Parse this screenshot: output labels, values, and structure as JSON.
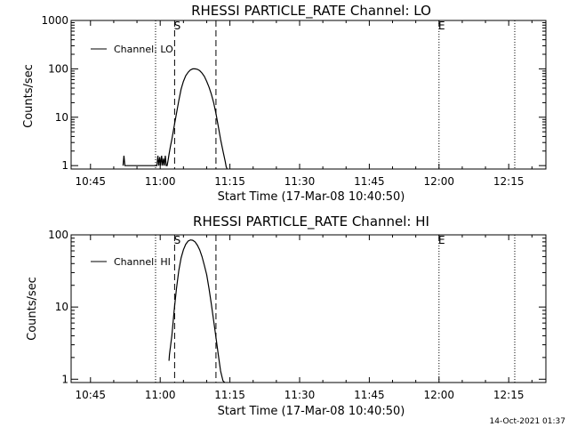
{
  "footer_timestamp": "14-Oct-2021 01:37",
  "chart_data": [
    {
      "type": "line",
      "title": "RHESSI PARTICLE_RATE Channel: LO",
      "xlabel": "Start Time (17-Mar-08 10:40:50)",
      "ylabel": "Counts/sec",
      "yscale": "log",
      "xlim_min": [
        40.83,
        143.0
      ],
      "ylim": [
        0.85,
        1000
      ],
      "xticks": [
        {
          "m": 45,
          "label": "10:45"
        },
        {
          "m": 60,
          "label": "11:00"
        },
        {
          "m": 75,
          "label": "11:15"
        },
        {
          "m": 90,
          "label": "11:30"
        },
        {
          "m": 105,
          "label": "11:45"
        },
        {
          "m": 120,
          "label": "12:00"
        },
        {
          "m": 135,
          "label": "12:15"
        }
      ],
      "yticks": [
        {
          "v": 1,
          "label": "1"
        },
        {
          "v": 10,
          "label": "10"
        },
        {
          "v": 100,
          "label": "100"
        },
        {
          "v": 1000,
          "label": "1000"
        }
      ],
      "series": [
        {
          "name": "Channel: LO",
          "x_min": [
            52.0,
            52.2,
            52.4,
            57.7,
            59.3,
            59.5,
            59.7,
            59.9,
            60.1,
            60.3,
            60.5,
            60.7,
            60.9,
            61.1,
            61.3,
            61.5,
            61.7,
            61.9,
            62.2,
            62.5,
            63.0,
            63.5,
            64.0,
            64.5,
            65.0,
            65.5,
            66.0,
            66.5,
            67.0,
            67.5,
            68.0,
            68.5,
            69.0,
            69.5,
            70.0,
            70.5,
            71.0,
            71.5,
            72.0,
            72.5,
            73.0,
            73.5,
            74.0,
            74.2,
            74.4
          ],
          "counts": [
            1.0,
            1.6,
            1.0,
            1.0,
            1.0,
            1.6,
            1.0,
            1.5,
            1.0,
            1.6,
            1.0,
            1.4,
            1.0,
            1.6,
            1.0,
            1.0,
            1.3,
            1.7,
            2.5,
            3.5,
            6.5,
            12,
            22,
            38,
            55,
            72,
            85,
            95,
            100,
            100,
            98,
            92,
            82,
            70,
            55,
            42,
            30,
            20,
            12,
            6.5,
            3.5,
            2.0,
            1.2,
            0.95,
            0.85
          ]
        }
      ],
      "markers": [
        {
          "type": "dotted",
          "m": 59.0
        },
        {
          "type": "dashed",
          "m": 63.1,
          "label": "S"
        },
        {
          "type": "dashed",
          "m": 72.0
        },
        {
          "type": "dotted",
          "m": 120.0,
          "label": "E"
        },
        {
          "type": "dotted",
          "m": 136.3
        }
      ]
    },
    {
      "type": "line",
      "title": "RHESSI PARTICLE_RATE Channel: HI",
      "xlabel": "Start Time (17-Mar-08 10:40:50)",
      "ylabel": "Counts/sec",
      "yscale": "log",
      "xlim_min": [
        40.83,
        143.0
      ],
      "ylim": [
        0.9,
        100
      ],
      "xticks": [
        {
          "m": 45,
          "label": "10:45"
        },
        {
          "m": 60,
          "label": "11:00"
        },
        {
          "m": 75,
          "label": "11:15"
        },
        {
          "m": 90,
          "label": "11:30"
        },
        {
          "m": 105,
          "label": "11:45"
        },
        {
          "m": 120,
          "label": "12:00"
        },
        {
          "m": 135,
          "label": "12:15"
        }
      ],
      "yticks": [
        {
          "v": 1,
          "label": "1"
        },
        {
          "v": 10,
          "label": "10"
        },
        {
          "v": 100,
          "label": "100"
        }
      ],
      "series": [
        {
          "name": "Channel: HI",
          "x_min": [
            61.9,
            62.0,
            62.5,
            63.0,
            63.5,
            64.0,
            64.5,
            65.0,
            65.5,
            66.0,
            66.5,
            67.0,
            67.5,
            68.0,
            68.5,
            69.0,
            69.5,
            70.0,
            70.5,
            71.0,
            71.5,
            72.0,
            72.5,
            73.0,
            73.5,
            73.9
          ],
          "counts": [
            1.8,
            2.2,
            4.0,
            9.0,
            18,
            32,
            48,
            62,
            74,
            82,
            85,
            84,
            80,
            72,
            62,
            50,
            38,
            28,
            18,
            11,
            6.5,
            3.8,
            2.2,
            1.3,
            0.95,
            0.9
          ]
        }
      ],
      "markers": [
        {
          "type": "dotted",
          "m": 59.0
        },
        {
          "type": "dashed",
          "m": 63.1,
          "label": "S"
        },
        {
          "type": "dashed",
          "m": 72.0
        },
        {
          "type": "dotted",
          "m": 120.0,
          "label": "E"
        },
        {
          "type": "dotted",
          "m": 136.3
        }
      ]
    }
  ]
}
